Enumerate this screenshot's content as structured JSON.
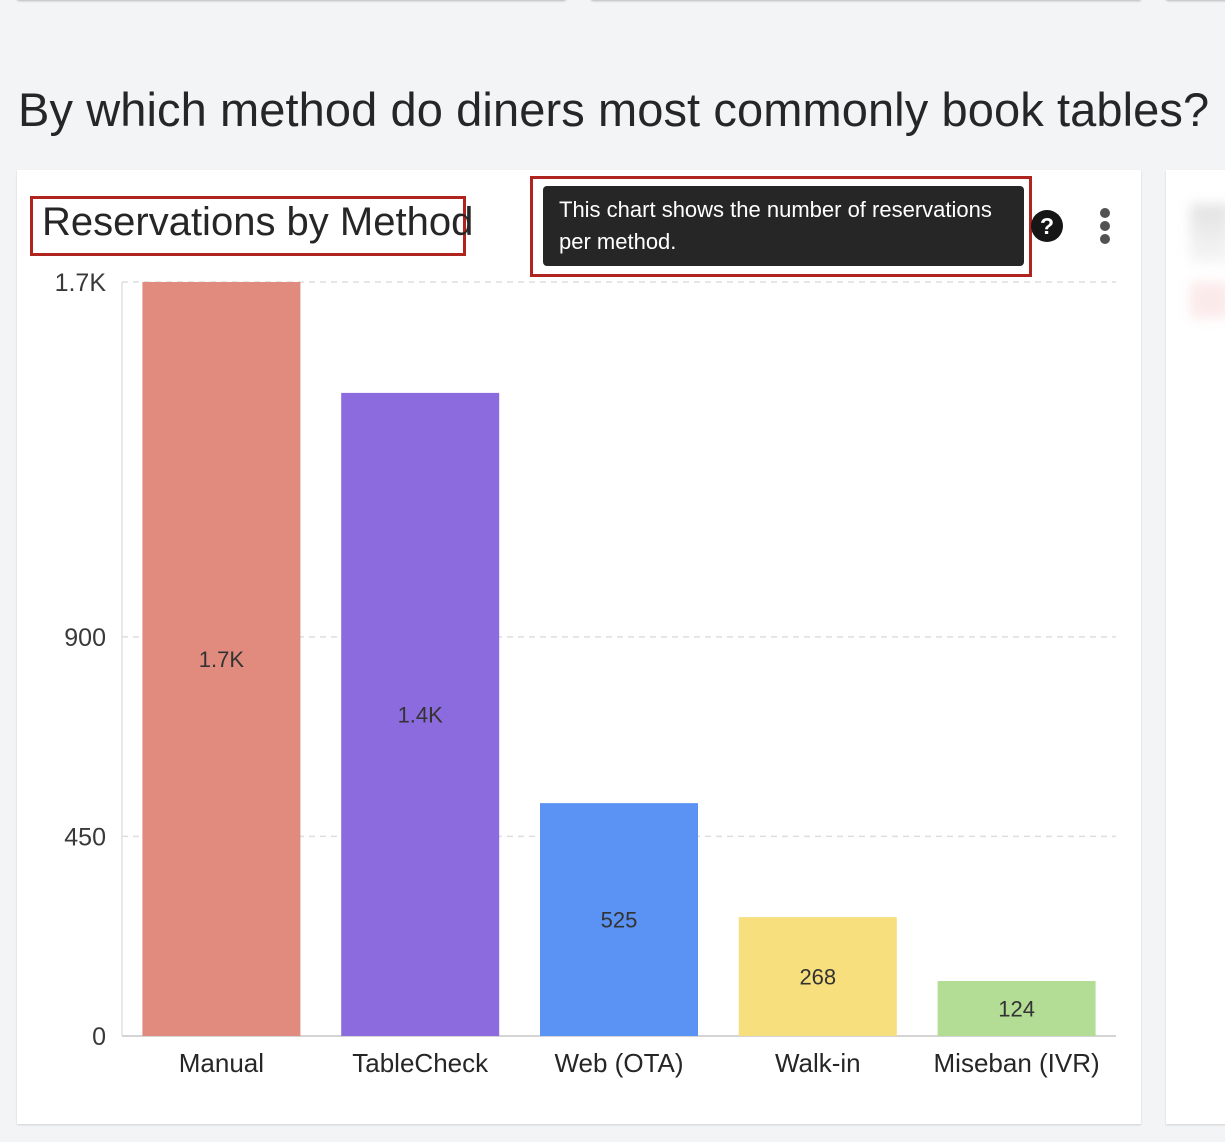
{
  "page": {
    "question": "By which method do diners most commonly book tables?"
  },
  "card": {
    "title": "Reservations by Method",
    "tooltip": "This chart shows the number of reservations per method.",
    "help_icon": "help-icon",
    "menu_icon": "overflow-menu-icon"
  },
  "chart_data": {
    "type": "bar",
    "title": "Reservations by Method",
    "xlabel": "",
    "ylabel": "",
    "categories": [
      "Manual",
      "TableCheck",
      "Web (OTA)",
      "Walk-in",
      "Miseban (IVR)"
    ],
    "values": [
      1700,
      1450,
      525,
      268,
      124
    ],
    "value_labels": [
      "1.7K",
      "1.4K",
      "525",
      "268",
      "124"
    ],
    "colors": [
      "#e08b7d",
      "#8c6bde",
      "#5b93f5",
      "#f6df7c",
      "#b3dd95"
    ],
    "y_ticks": [
      0,
      450,
      900,
      1700
    ],
    "y_tick_labels": [
      "0",
      "450",
      "900",
      "1.7K"
    ],
    "ylim": [
      0,
      1700
    ],
    "grid": true,
    "legend": "none"
  }
}
